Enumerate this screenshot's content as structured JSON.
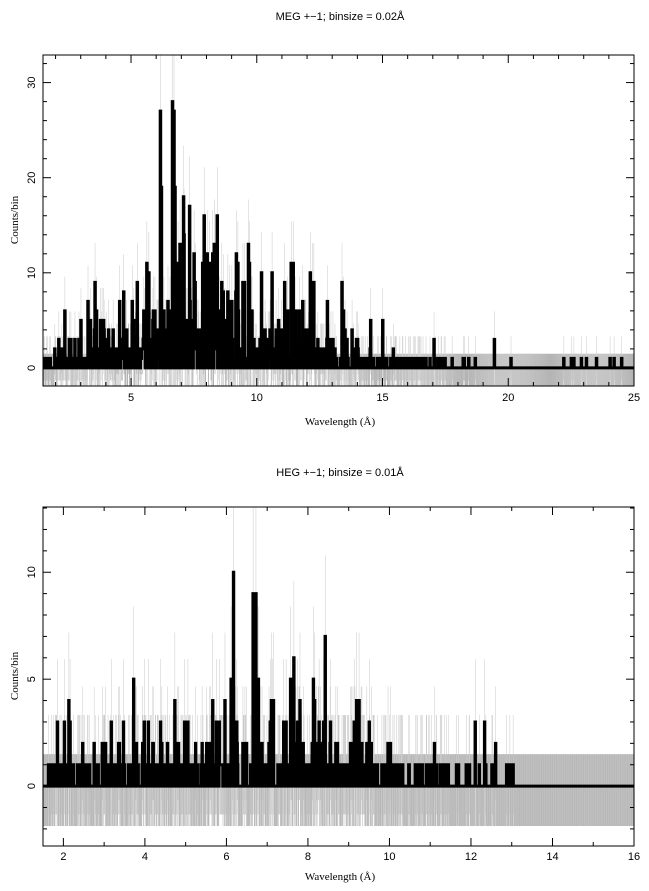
{
  "chart_data": [
    {
      "type": "line",
      "title": "MEG +−1; binsize = 0.02Å",
      "xlabel": "Wavelength (Å)",
      "ylabel": "Counts/bin",
      "xlim": [
        1.5,
        25
      ],
      "ylim": [
        -1.9,
        32.9
      ],
      "binsize": 0.02,
      "xticks": [
        5,
        10,
        15,
        20,
        25
      ],
      "yticks": [
        0,
        10,
        20,
        30
      ],
      "xminor": 1,
      "yminor": 2,
      "data_end": 24.6,
      "background_envelope": {
        "x": [
          1.5,
          2.5,
          3.5,
          4.5,
          5.5,
          6.0,
          7.0,
          8.0,
          9.0,
          10.0,
          11.0,
          12.0,
          13.0,
          14.0,
          15.0,
          16.0,
          17.0,
          18.0,
          19.0,
          20.0,
          21.0,
          22.0,
          23.0,
          24.6
        ],
        "counts": [
          0.6,
          1.4,
          2.2,
          2.0,
          2.4,
          3.5,
          5.0,
          5.2,
          4.2,
          3.6,
          3.0,
          2.6,
          2.0,
          1.2,
          0.6,
          0.4,
          0.35,
          0.3,
          0.25,
          0.05,
          0.0,
          0.1,
          0.12,
          0.12
        ]
      },
      "peaks": [
        [
          3.3,
          7
        ],
        [
          3.0,
          5
        ],
        [
          3.9,
          5
        ],
        [
          4.7,
          8
        ],
        [
          5.05,
          7
        ],
        [
          5.7,
          10
        ],
        [
          6.18,
          27
        ],
        [
          6.22,
          19
        ],
        [
          6.65,
          28
        ],
        [
          6.7,
          27
        ],
        [
          6.86,
          11
        ],
        [
          7.1,
          14
        ],
        [
          7.5,
          12
        ],
        [
          7.85,
          11
        ],
        [
          8.1,
          11
        ],
        [
          8.3,
          13
        ],
        [
          8.42,
          16
        ],
        [
          8.6,
          9
        ],
        [
          9.0,
          7
        ],
        [
          9.2,
          12
        ],
        [
          9.25,
          11
        ],
        [
          9.5,
          9
        ],
        [
          10.2,
          10
        ],
        [
          10.62,
          10
        ],
        [
          11.1,
          9
        ],
        [
          11.7,
          6
        ],
        [
          12.13,
          10
        ],
        [
          12.2,
          9
        ],
        [
          12.8,
          7
        ],
        [
          13.45,
          6
        ],
        [
          15.01,
          5
        ],
        [
          17.05,
          3
        ],
        [
          19.45,
          3
        ],
        [
          20.1,
          1
        ],
        [
          22.2,
          1
        ],
        [
          22.5,
          1
        ],
        [
          22.6,
          1
        ],
        [
          22.9,
          1
        ],
        [
          23.1,
          1
        ],
        [
          23.5,
          1
        ],
        [
          24.05,
          1
        ],
        [
          24.5,
          1
        ]
      ]
    },
    {
      "type": "line",
      "title": "HEG +−1; binsize = 0.01Å",
      "xlabel": "Wavelength (Å)",
      "ylabel": "Counts/bin",
      "xlim": [
        1.5,
        16
      ],
      "ylim": [
        -2.8,
        13.05
      ],
      "binsize": 0.01,
      "xticks": [
        2,
        4,
        6,
        8,
        10,
        12,
        14,
        16
      ],
      "yticks": [
        0,
        5,
        10
      ],
      "xminor": 1,
      "yminor": 1,
      "data_end": 13.05,
      "background_envelope": {
        "x": [
          1.5,
          2.0,
          3.0,
          4.0,
          5.0,
          5.5,
          6.0,
          7.0,
          8.0,
          9.0,
          10.0,
          11.0,
          12.0,
          12.6,
          13.05
        ],
        "counts": [
          0.3,
          0.6,
          0.7,
          0.7,
          0.7,
          0.8,
          1.0,
          1.2,
          1.1,
          1.0,
          0.6,
          0.4,
          0.25,
          0.15,
          0.1
        ]
      },
      "peaks": [
        [
          1.85,
          3
        ],
        [
          2.02,
          3
        ],
        [
          3.17,
          3
        ],
        [
          3.47,
          3
        ],
        [
          3.72,
          5
        ],
        [
          3.98,
          3
        ],
        [
          4.08,
          3
        ],
        [
          4.73,
          4
        ],
        [
          5.06,
          3
        ],
        [
          5.66,
          4
        ],
        [
          5.97,
          4
        ],
        [
          6.18,
          10
        ],
        [
          6.25,
          3
        ],
        [
          6.65,
          9
        ],
        [
          6.72,
          9
        ],
        [
          6.78,
          5
        ],
        [
          7.1,
          4
        ],
        [
          7.15,
          4
        ],
        [
          7.4,
          3
        ],
        [
          7.65,
          6
        ],
        [
          7.8,
          4
        ],
        [
          8.13,
          5
        ],
        [
          8.42,
          7
        ],
        [
          8.55,
          3
        ],
        [
          9.2,
          4
        ],
        [
          9.25,
          4
        ],
        [
          9.5,
          3
        ],
        [
          11.1,
          2
        ],
        [
          12.1,
          3
        ],
        [
          12.33,
          3
        ],
        [
          12.6,
          2
        ],
        [
          12.87,
          1
        ],
        [
          12.95,
          1
        ],
        [
          13.03,
          1
        ]
      ]
    }
  ]
}
